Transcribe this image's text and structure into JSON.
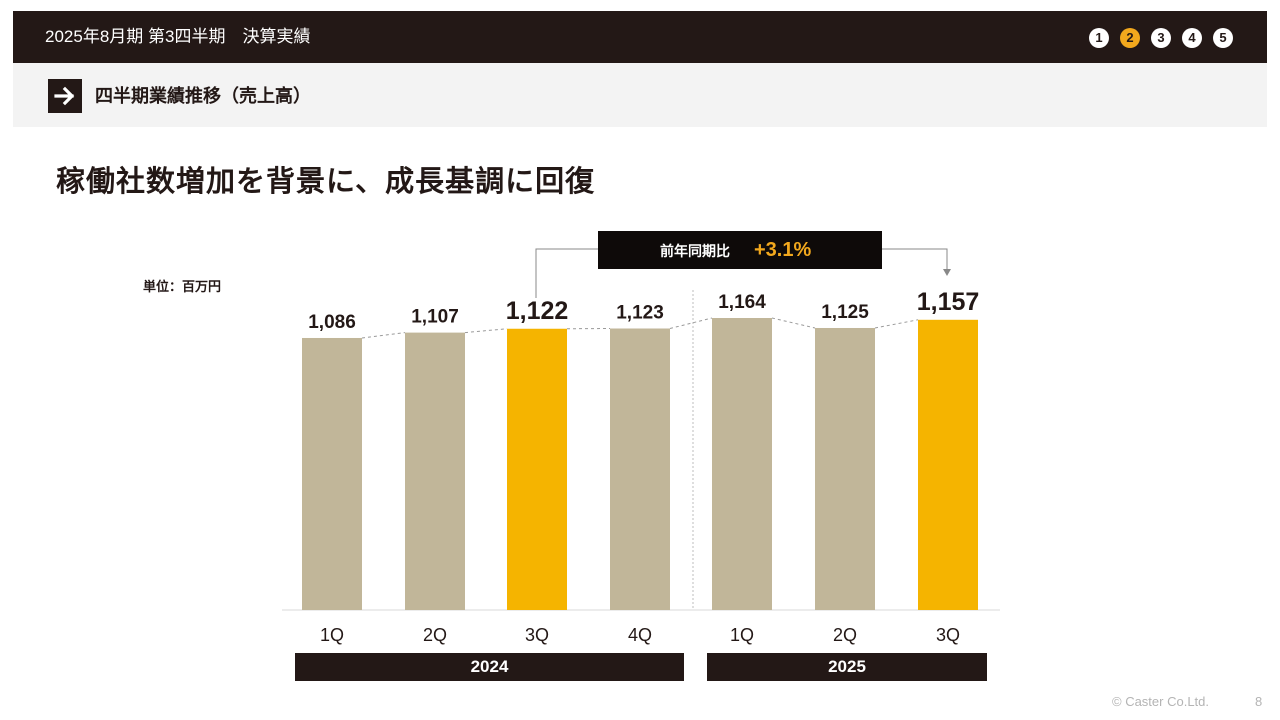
{
  "header": {
    "title": "2025年8月期 第3四半期　決算実績",
    "steps": [
      {
        "label": "1",
        "active": false
      },
      {
        "label": "2",
        "active": true
      },
      {
        "label": "3",
        "active": false
      },
      {
        "label": "4",
        "active": false
      },
      {
        "label": "5",
        "active": false
      }
    ]
  },
  "section": {
    "icon": "arrow-right-icon",
    "title": "四半期業績推移（売上高）"
  },
  "headline": "稼働社数増加を背景に、成長基調に回復",
  "unit_label": "単位：百万円",
  "yoy": {
    "label": "前年同期比",
    "value": "+3.1%"
  },
  "colors": {
    "dark": "#231816",
    "accent": "#f5b400",
    "base_bar": "#c1b699"
  },
  "chart_data": {
    "type": "bar",
    "categories": [
      "1Q",
      "2Q",
      "3Q",
      "4Q",
      "1Q",
      "2Q",
      "3Q"
    ],
    "groups": [
      {
        "label": "2024",
        "quarters": [
          "1Q",
          "2Q",
          "3Q",
          "4Q"
        ]
      },
      {
        "label": "2025",
        "quarters": [
          "1Q",
          "2Q",
          "3Q"
        ]
      }
    ],
    "values": [
      1086,
      1107,
      1122,
      1123,
      1164,
      1125,
      1157
    ],
    "value_labels": [
      "1,086",
      "1,107",
      "1,122",
      "1,123",
      "1,164",
      "1,125",
      "1,157"
    ],
    "highlighted": [
      false,
      false,
      true,
      false,
      false,
      false,
      true
    ],
    "ylim": [
      0,
      1164
    ],
    "grid": false,
    "legend": "none",
    "title": "",
    "xlabel": "",
    "ylabel": ""
  },
  "footer": {
    "copyright": "© Caster Co.Ltd.",
    "page": "8"
  }
}
